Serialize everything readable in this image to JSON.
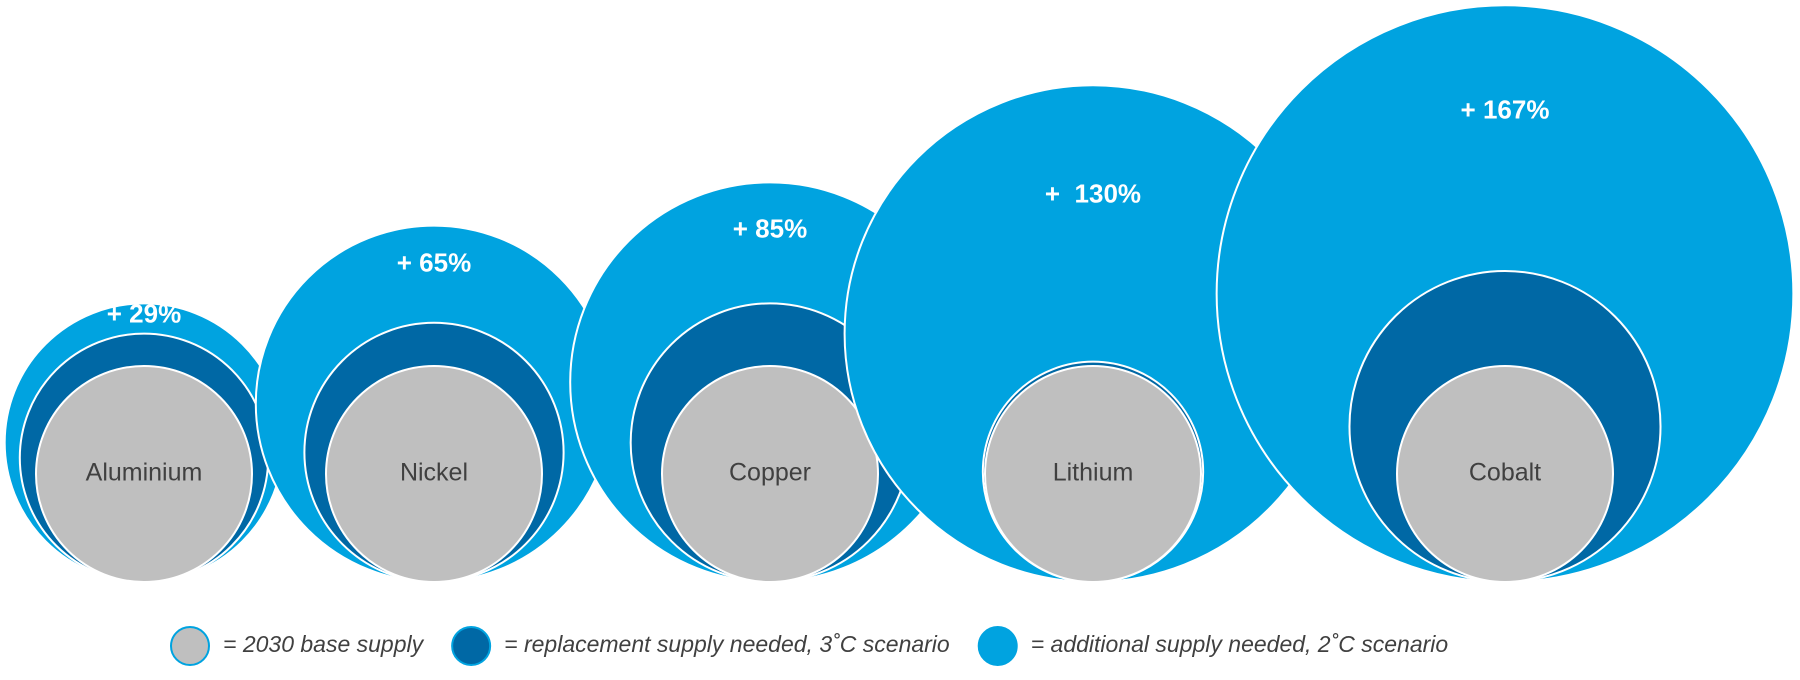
{
  "chart_data": {
    "type": "nested-bubble",
    "categories": [
      "Aluminium",
      "Nickel",
      "Copper",
      "Lithium",
      "Cobalt"
    ],
    "series": [
      {
        "name": "= 2030 base supply",
        "color": "#bfbfbf",
        "values": [
          100,
          100,
          100,
          100,
          100
        ]
      },
      {
        "name": "= replacement supply needed, 3˚C scenario",
        "color": "#0068a5",
        "values": [
          15,
          20,
          29,
          2,
          44
        ]
      },
      {
        "name": "= additional supply needed, 2˚C scenario",
        "color": "#00a3e0",
        "values": [
          29,
          65,
          85,
          130,
          167
        ],
        "value_labels": [
          "+ 29%",
          "+ 65%",
          "+ 85%",
          "+  130%",
          "+ 167%"
        ]
      }
    ]
  }
}
